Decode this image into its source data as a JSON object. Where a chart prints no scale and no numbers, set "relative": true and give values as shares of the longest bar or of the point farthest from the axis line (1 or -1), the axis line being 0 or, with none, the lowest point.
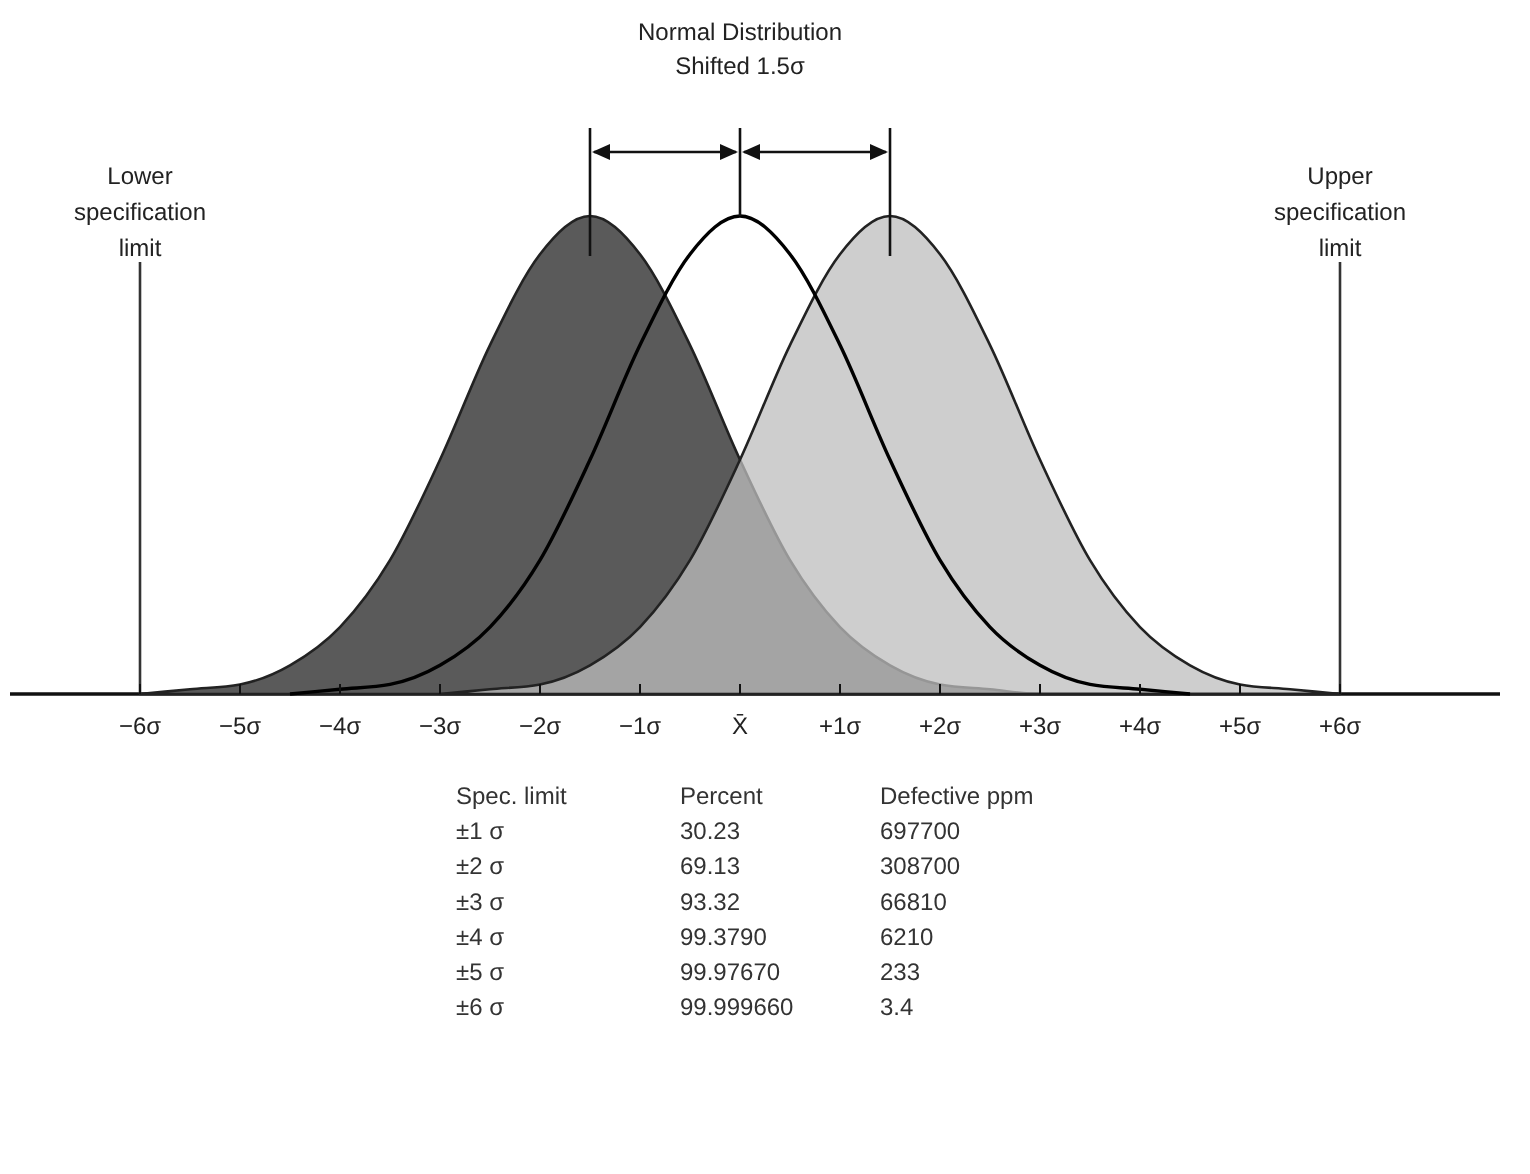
{
  "chart_data": {
    "type": "area",
    "title": "Normal Distribution",
    "subtitle": "Shifted 1.5σ",
    "relative": true,
    "tick_labels": "x",
    "x": [
      -6,
      -5.5,
      -5,
      -4.5,
      -4,
      -3.5,
      -3,
      -2.5,
      -2,
      -1.5,
      -1,
      -0.5,
      0,
      0.5,
      1,
      1.5,
      2,
      2.5,
      3,
      3.5,
      4,
      4.5,
      5,
      5.5,
      6
    ],
    "xlim": [
      -7.3,
      7.6
    ],
    "xticks": [
      {
        "value": -6,
        "label": "−6σ"
      },
      {
        "value": -5,
        "label": "−5σ"
      },
      {
        "value": -4,
        "label": "−4σ"
      },
      {
        "value": -3,
        "label": "−3σ"
      },
      {
        "value": -2,
        "label": "−2σ"
      },
      {
        "value": -1,
        "label": "−1σ"
      },
      {
        "value": 0,
        "label": "X̄"
      },
      {
        "value": 1,
        "label": "+1σ"
      },
      {
        "value": 2,
        "label": "+2σ"
      },
      {
        "value": 3,
        "label": "+3σ"
      },
      {
        "value": 4,
        "label": "+4σ"
      },
      {
        "value": 5,
        "label": "+5σ"
      },
      {
        "value": 6,
        "label": "+6σ"
      }
    ],
    "series": [
      {
        "type": "area",
        "color": "#5a5a5a",
        "values": [
          0,
          0.01,
          0.02,
          0.06,
          0.14,
          0.28,
          0.49,
          0.73,
          0.92,
          1,
          0.92,
          0.73,
          0.49,
          0.28,
          0.14,
          0.06,
          0.02,
          0.01,
          0,
          0,
          0,
          0,
          0,
          0,
          0
        ]
      },
      {
        "type": "area",
        "color": "#bdbdbd",
        "values": [
          null,
          null,
          null,
          null,
          null,
          null,
          0,
          0.01,
          0.02,
          0.06,
          0.14,
          0.28,
          0.49,
          0.73,
          0.92,
          1,
          0.92,
          0.73,
          0.49,
          0.28,
          0.14,
          0.06,
          0.02,
          0.01,
          0
        ]
      },
      {
        "type": "line",
        "color": "#000000",
        "values": [
          null,
          null,
          null,
          0,
          0.01,
          0.02,
          0.06,
          0.14,
          0.28,
          0.49,
          0.73,
          0.92,
          1,
          0.92,
          0.73,
          0.49,
          0.28,
          0.14,
          0.06,
          0.02,
          0.01,
          0,
          null,
          null,
          null
        ]
      }
    ],
    "ref_lines": [
      {
        "axis": "x",
        "value": -6,
        "label": "Lower specification limit",
        "color": "#333333"
      },
      {
        "axis": "x",
        "value": 6,
        "label": "Upper specification limit",
        "color": "#333333"
      }
    ],
    "annotations": [
      "Spec. limit",
      "Percent",
      "Defective ppm",
      "±1 σ",
      "30.23",
      "697700",
      "±2 σ",
      "69.13",
      "308700",
      "±3 σ",
      "93.32",
      "66810",
      "±4 σ",
      "99.3790",
      "6210",
      "±5 σ",
      "99.97670",
      "233",
      "±6 σ",
      "99.999660",
      "3.4"
    ]
  }
}
